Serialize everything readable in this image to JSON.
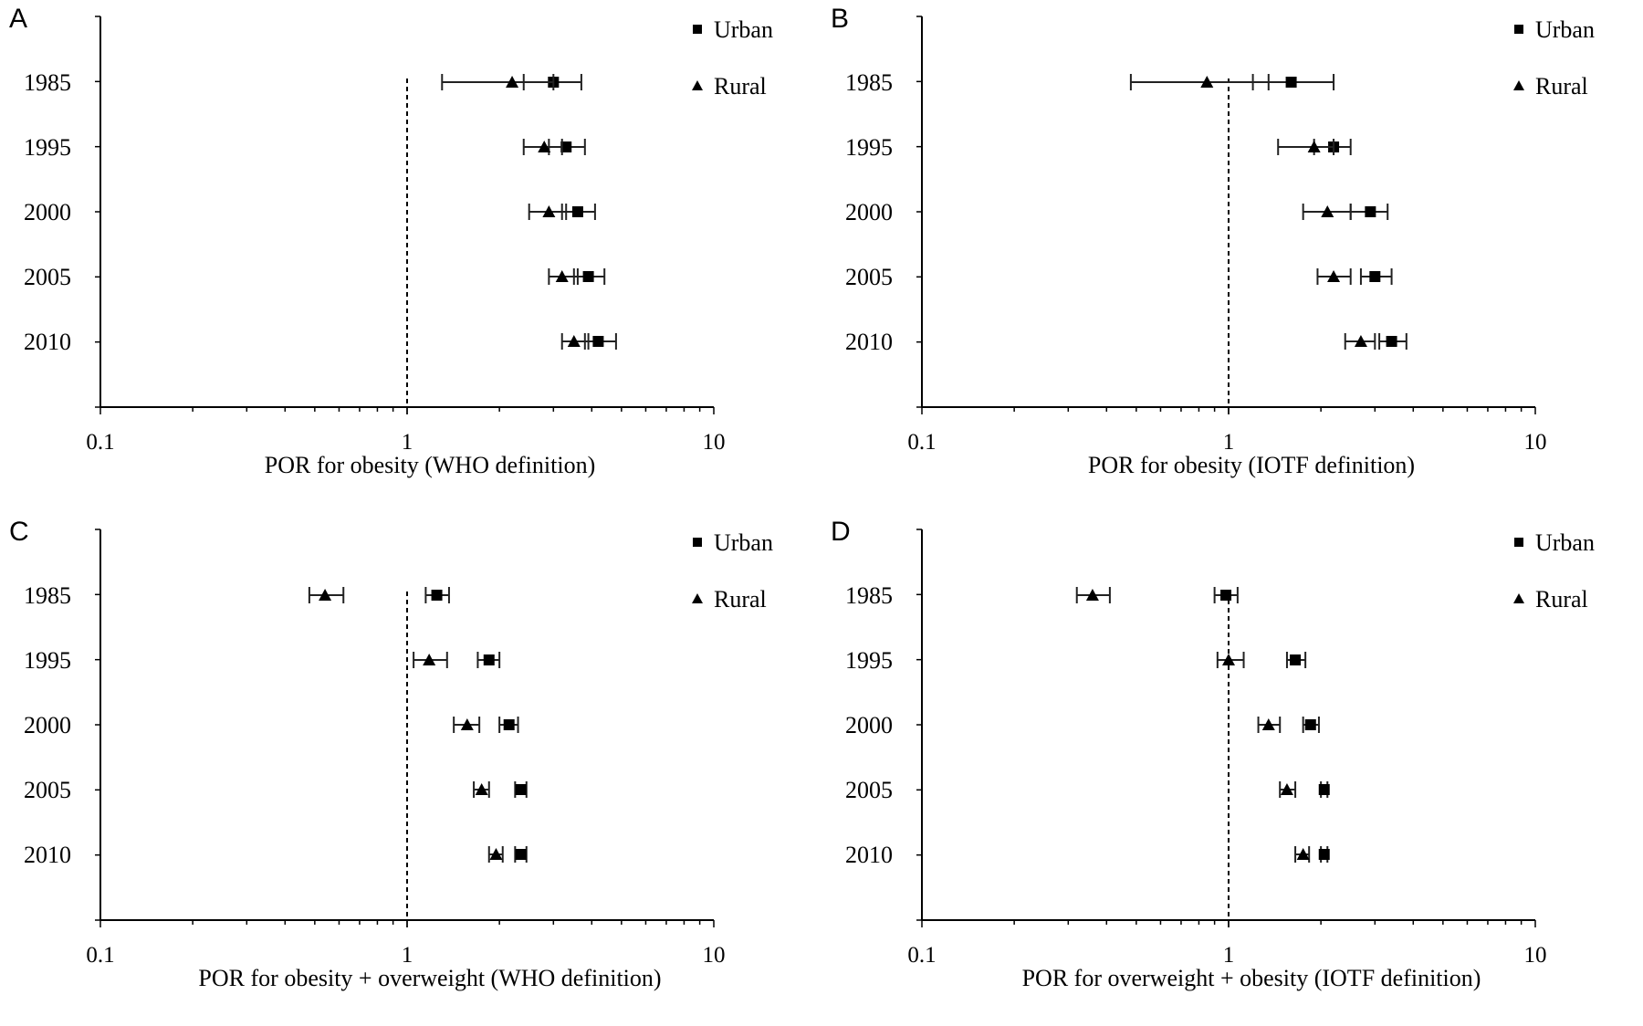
{
  "chart_data": [
    {
      "type": "scatter",
      "panel_label": "A",
      "xlabel": "POR for obesity (WHO definition)",
      "x_scale": "log",
      "xlim": [
        0.1,
        10
      ],
      "x_ticks": [
        "0.1",
        "1",
        "10"
      ],
      "reference_line": 1,
      "categories": [
        "1985",
        "1995",
        "2000",
        "2005",
        "2010"
      ],
      "legend": [
        "Urban",
        "Rural"
      ],
      "legend_position": "top-right",
      "series": [
        {
          "name": "Urban",
          "marker": "square",
          "values": [
            3.0,
            3.3,
            3.6,
            3.9,
            4.2
          ],
          "lower": [
            2.4,
            2.9,
            3.2,
            3.5,
            3.8
          ],
          "upper": [
            3.7,
            3.8,
            4.1,
            4.4,
            4.8
          ]
        },
        {
          "name": "Rural",
          "marker": "triangle",
          "values": [
            2.2,
            2.8,
            2.9,
            3.2,
            3.5
          ],
          "lower": [
            1.3,
            2.4,
            2.5,
            2.9,
            3.2
          ],
          "upper": [
            3.0,
            3.2,
            3.3,
            3.6,
            3.9
          ]
        }
      ]
    },
    {
      "type": "scatter",
      "panel_label": "B",
      "xlabel": "POR for obesity (IOTF definition)",
      "x_scale": "log",
      "xlim": [
        0.1,
        10
      ],
      "x_ticks": [
        "0.1",
        "1",
        "10"
      ],
      "reference_line": 1,
      "categories": [
        "1985",
        "1995",
        "2000",
        "2005",
        "2010"
      ],
      "legend": [
        "Urban",
        "Rural"
      ],
      "legend_position": "top-right",
      "series": [
        {
          "name": "Urban",
          "marker": "square",
          "values": [
            1.6,
            2.2,
            2.9,
            3.0,
            3.4
          ],
          "lower": [
            1.2,
            1.9,
            2.5,
            2.7,
            3.1
          ],
          "upper": [
            2.2,
            2.5,
            3.3,
            3.4,
            3.8
          ]
        },
        {
          "name": "Rural",
          "marker": "triangle",
          "values": [
            0.85,
            1.9,
            2.1,
            2.2,
            2.7
          ],
          "lower": [
            0.48,
            1.45,
            1.75,
            1.95,
            2.4
          ],
          "upper": [
            1.35,
            2.2,
            2.5,
            2.5,
            3.0
          ]
        }
      ]
    },
    {
      "type": "scatter",
      "panel_label": "C",
      "xlabel": "POR for obesity + overweight (WHO definition)",
      "x_scale": "log",
      "xlim": [
        0.1,
        10
      ],
      "x_ticks": [
        "0.1",
        "1",
        "10"
      ],
      "reference_line": 1,
      "categories": [
        "1985",
        "1995",
        "2000",
        "2005",
        "2010"
      ],
      "legend": [
        "Urban",
        "Rural"
      ],
      "legend_position": "top-right",
      "series": [
        {
          "name": "Urban",
          "marker": "square",
          "values": [
            1.25,
            1.85,
            2.15,
            2.35,
            2.35
          ],
          "lower": [
            1.15,
            1.7,
            2.0,
            2.25,
            2.25
          ],
          "upper": [
            1.37,
            2.0,
            2.3,
            2.45,
            2.45
          ]
        },
        {
          "name": "Rural",
          "marker": "triangle",
          "values": [
            0.54,
            1.18,
            1.57,
            1.75,
            1.95
          ],
          "lower": [
            0.48,
            1.05,
            1.42,
            1.65,
            1.85
          ],
          "upper": [
            0.62,
            1.35,
            1.72,
            1.85,
            2.05
          ]
        }
      ]
    },
    {
      "type": "scatter",
      "panel_label": "D",
      "xlabel": "POR for overweight + obesity (IOTF definition)",
      "x_scale": "log",
      "xlim": [
        0.1,
        10
      ],
      "x_ticks": [
        "0.1",
        "1",
        "10"
      ],
      "reference_line": 1,
      "categories": [
        "1985",
        "1995",
        "2000",
        "2005",
        "2010"
      ],
      "legend": [
        "Urban",
        "Rural"
      ],
      "legend_position": "top-right",
      "series": [
        {
          "name": "Urban",
          "marker": "square",
          "values": [
            0.98,
            1.65,
            1.85,
            2.05,
            2.05
          ],
          "lower": [
            0.9,
            1.55,
            1.75,
            2.0,
            2.0
          ],
          "upper": [
            1.07,
            1.78,
            1.97,
            2.1,
            2.1
          ]
        },
        {
          "name": "Rural",
          "marker": "triangle",
          "values": [
            0.36,
            1.0,
            1.35,
            1.55,
            1.75
          ],
          "lower": [
            0.32,
            0.92,
            1.25,
            1.47,
            1.65
          ],
          "upper": [
            0.41,
            1.12,
            1.47,
            1.65,
            1.83
          ]
        }
      ]
    }
  ]
}
